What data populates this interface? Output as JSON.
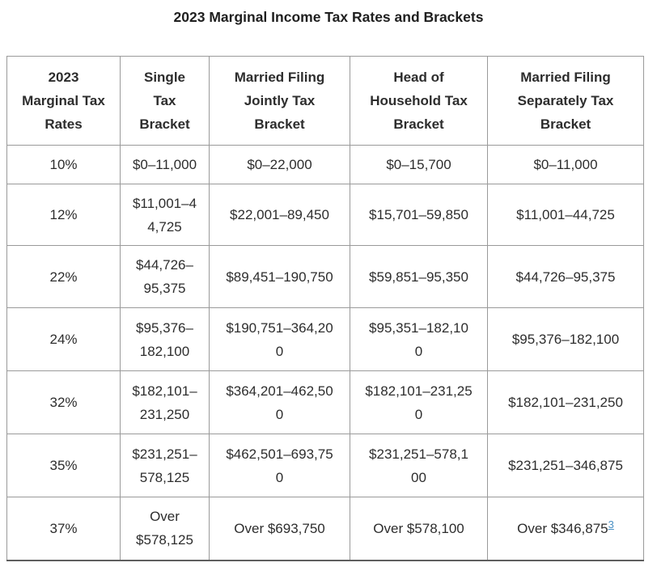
{
  "page": {
    "title": "2023 Marginal Income Tax Rates and Brackets"
  },
  "table": {
    "headers": [
      "2023\nMarginal Tax\nRates",
      "Single\nTax\nBracket",
      "Married Filing\nJointly Tax\nBracket",
      "Head of\nHousehold Tax\nBracket",
      "Married Filing\nSeparately Tax\nBracket"
    ],
    "rows": [
      [
        "10%",
        "$0–11,000",
        "$0–22,000",
        "$0–15,700",
        "$0–11,000"
      ],
      [
        "12%",
        "$11,001–4\n4,725",
        "$22,001–89,450",
        "$15,701–59,850",
        "$11,001–44,725"
      ],
      [
        "22%",
        "$44,726–\n95,375",
        "$89,451–190,750",
        "$59,851–95,350",
        "$44,726–95,375"
      ],
      [
        "24%",
        "$95,376–\n182,100",
        "$190,751–364,20\n0",
        "$95,351–182,10\n0",
        "$95,376–182,100"
      ],
      [
        "32%",
        "$182,101–\n231,250",
        "$364,201–462,50\n0",
        "$182,101–231,25\n0",
        "$182,101–231,250"
      ],
      [
        "35%",
        "$231,251–\n578,125",
        "$462,501–693,75\n0",
        "$231,251–578,1\n00",
        "$231,251–346,875"
      ],
      [
        "37%",
        "Over\n$578,125",
        "Over $693,750",
        "Over $578,100",
        "Over $346,875"
      ]
    ],
    "footnote_marker": "3"
  },
  "colors": {
    "text": "#2d2d2d",
    "border": "#9a9a9a",
    "border_bottom": "#5f5f5f",
    "footnote_link": "#4a90c4"
  }
}
